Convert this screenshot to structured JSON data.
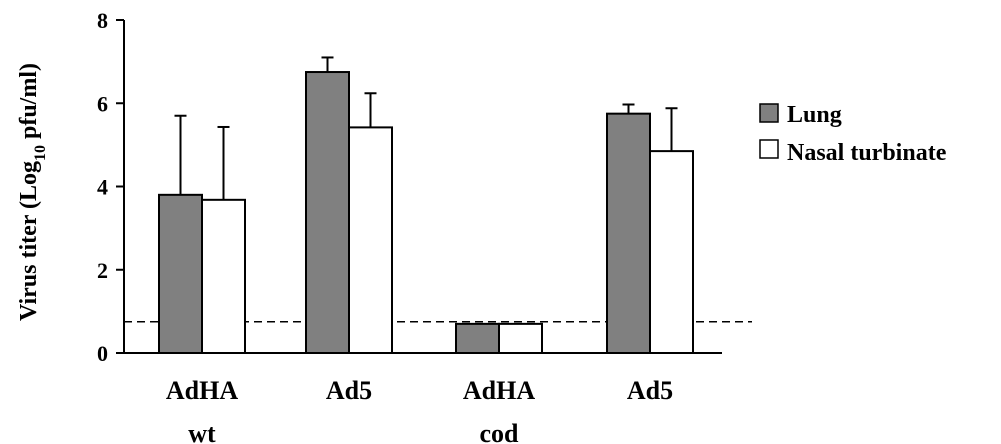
{
  "chart_data": {
    "type": "bar",
    "categories": [
      {
        "line1": "AdHA",
        "line2": "wt"
      },
      {
        "line1": "Ad5",
        "line2": ""
      },
      {
        "line1": "AdHA",
        "line2": "cod"
      },
      {
        "line1": "Ad5",
        "line2": ""
      }
    ],
    "series": [
      {
        "name": "Lung",
        "color": "#808080",
        "values": [
          3.8,
          6.75,
          0.7,
          5.75
        ],
        "errors": [
          1.9,
          0.35,
          0,
          0.22
        ]
      },
      {
        "name": "Nasal turbinate",
        "color": "#ffffff",
        "values": [
          3.68,
          5.42,
          0.7,
          4.85
        ],
        "errors": [
          1.75,
          0.82,
          0,
          1.03
        ]
      }
    ],
    "ylabel_main": "Virus titer (Log",
    "ylabel_sub": "10",
    "ylabel_end": " pfu/ml)",
    "ylim": [
      0,
      8
    ],
    "yticks": [
      0,
      2,
      4,
      6,
      8
    ],
    "reference_line": {
      "y": 0.75,
      "style": "dashed"
    },
    "legend_position": "right"
  }
}
